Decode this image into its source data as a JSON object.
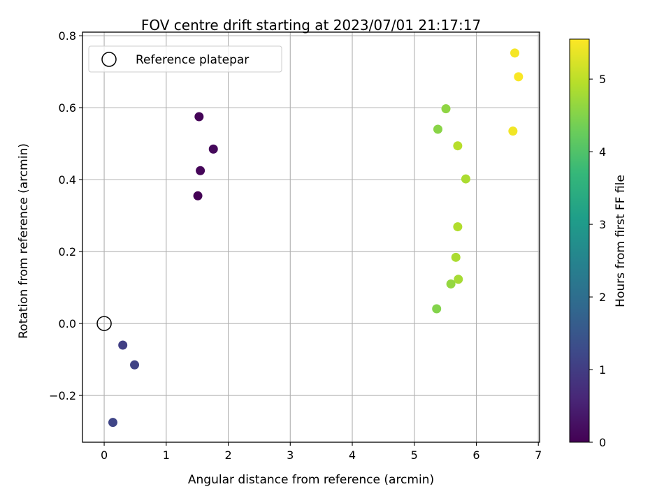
{
  "chart_data": {
    "type": "scatter",
    "title": "FOV centre drift starting at 2023/07/01 21:17:17",
    "xlabel": "Angular distance from reference (arcmin)",
    "ylabel": "Rotation from reference (arcmin)",
    "xlim": [
      -0.35,
      7.02
    ],
    "ylim": [
      -0.33,
      0.81
    ],
    "x_ticks": [
      0,
      1,
      2,
      3,
      4,
      5,
      6,
      7
    ],
    "x_tick_labels": [
      "0",
      "1",
      "2",
      "3",
      "4",
      "5",
      "6",
      "7"
    ],
    "y_ticks": [
      -0.2,
      0.0,
      0.2,
      0.4,
      0.6,
      0.8
    ],
    "y_tick_labels": [
      "−0.2",
      "0.0",
      "0.2",
      "0.4",
      "0.6",
      "0.8"
    ],
    "grid": true,
    "legend": {
      "placement": "top-left",
      "entries": [
        "Reference platepar"
      ]
    },
    "reference_point": {
      "x": 0.0,
      "y": 0.0,
      "label": "Reference platepar"
    },
    "colorbar": {
      "label": "Hours from first FF file",
      "range": [
        0,
        5.55
      ],
      "ticks": [
        0,
        1,
        2,
        3,
        4,
        5
      ],
      "tick_labels": [
        "0",
        "1",
        "2",
        "3",
        "4",
        "5"
      ],
      "colormap": "viridis",
      "colors": [
        "#440154",
        "#482878",
        "#3e4989",
        "#31688e",
        "#26828e",
        "#1f9e89",
        "#35b779",
        "#6ece58",
        "#b5de2b",
        "#fde725"
      ]
    },
    "points": [
      {
        "x": 1.53,
        "y": 0.575,
        "c": 0.05
      },
      {
        "x": 1.76,
        "y": 0.485,
        "c": 0.12
      },
      {
        "x": 1.55,
        "y": 0.425,
        "c": 0.08
      },
      {
        "x": 1.51,
        "y": 0.355,
        "c": 0.02
      },
      {
        "x": 0.3,
        "y": -0.06,
        "c": 1.05
      },
      {
        "x": 0.49,
        "y": -0.115,
        "c": 1.1
      },
      {
        "x": 0.14,
        "y": -0.275,
        "c": 1.15
      },
      {
        "x": 5.51,
        "y": 0.597,
        "c": 4.6
      },
      {
        "x": 5.38,
        "y": 0.54,
        "c": 4.55
      },
      {
        "x": 5.7,
        "y": 0.494,
        "c": 4.95
      },
      {
        "x": 5.83,
        "y": 0.402,
        "c": 4.85
      },
      {
        "x": 5.7,
        "y": 0.269,
        "c": 4.9
      },
      {
        "x": 5.67,
        "y": 0.184,
        "c": 4.85
      },
      {
        "x": 5.71,
        "y": 0.123,
        "c": 4.8
      },
      {
        "x": 5.59,
        "y": 0.11,
        "c": 4.65
      },
      {
        "x": 5.36,
        "y": 0.041,
        "c": 4.5
      },
      {
        "x": 6.62,
        "y": 0.752,
        "c": 5.48
      },
      {
        "x": 6.68,
        "y": 0.686,
        "c": 5.52
      },
      {
        "x": 6.59,
        "y": 0.535,
        "c": 5.45
      }
    ]
  }
}
